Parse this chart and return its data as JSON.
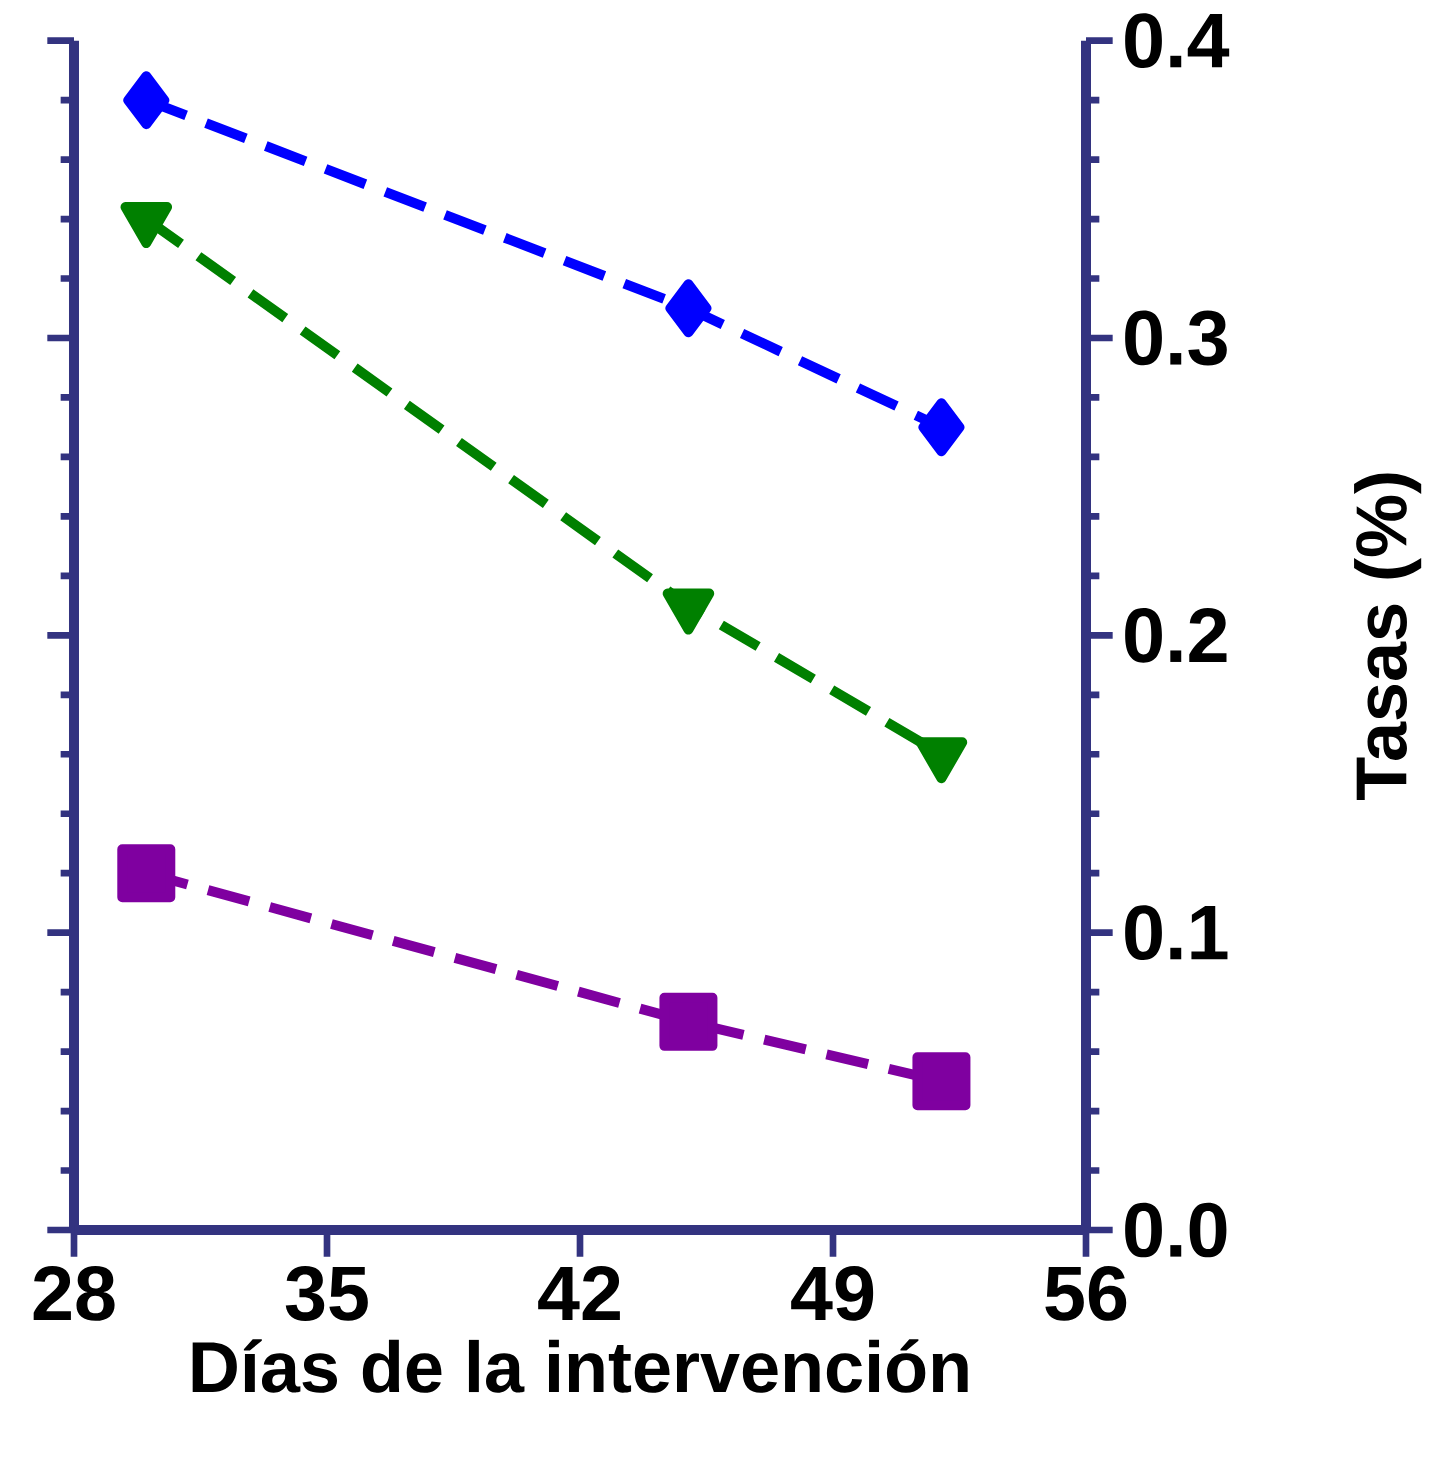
{
  "chart_data": {
    "type": "line",
    "xlabel": "Días de la intervención",
    "ylabel": "Tasas (%)",
    "x": [
      30,
      45,
      52
    ],
    "series": [
      {
        "color": "#0000ff",
        "marker": "diamond",
        "values": [
          0.38,
          0.31,
          0.27
        ]
      },
      {
        "color": "#008000",
        "marker": "triangle",
        "values": [
          0.34,
          0.21,
          0.16
        ]
      },
      {
        "color": "#7f00a0",
        "marker": "square",
        "values": [
          0.12,
          0.07,
          0.05
        ]
      }
    ],
    "xlim": [
      28,
      56
    ],
    "xticks": [
      28,
      35,
      42,
      49,
      56
    ],
    "ylim": [
      0,
      0.4
    ],
    "yticks": [
      {
        "value": 0,
        "label": "0.0"
      },
      0.1,
      0.2,
      0.3,
      0.4
    ],
    "line_style": "dashed",
    "grid": false
  }
}
